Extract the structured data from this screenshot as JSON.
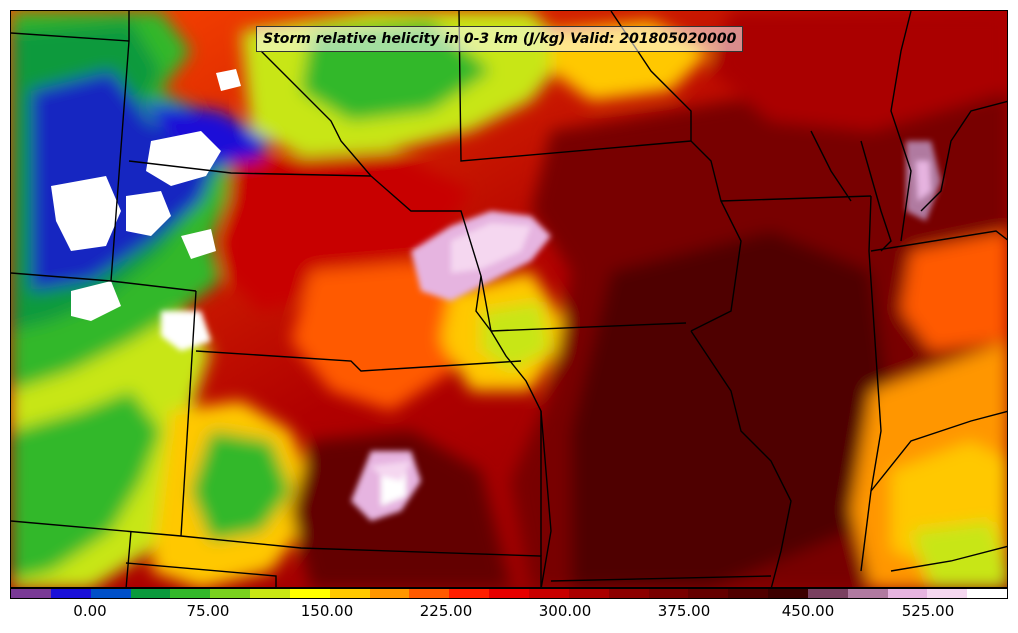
{
  "title": "Storm relative helicity in 0-3 km (J/kg) Valid: 201805020000",
  "colorbar": {
    "tick_labels": [
      "0.00",
      "75.00",
      "150.00",
      "225.00",
      "300.00",
      "375.00",
      "450.00",
      "525.00"
    ],
    "colors": [
      "#7a3a96",
      "#1a10d8",
      "#0050c8",
      "#0a9a3c",
      "#33b82a",
      "#7ad21e",
      "#c8e614",
      "#ffff00",
      "#ffc800",
      "#ff9600",
      "#ff5a00",
      "#ff1e00",
      "#e60000",
      "#c80000",
      "#aa0000",
      "#8c0000",
      "#780000",
      "#640000",
      "#500000",
      "#3c0000",
      "#7a4060",
      "#b07aa0",
      "#e6b4e0",
      "#f5d7f0",
      "#ffffff"
    ]
  },
  "map": {
    "field": "storm-relative helicity 0-3 km",
    "units": "J/kg",
    "valid": "201805020000"
  }
}
